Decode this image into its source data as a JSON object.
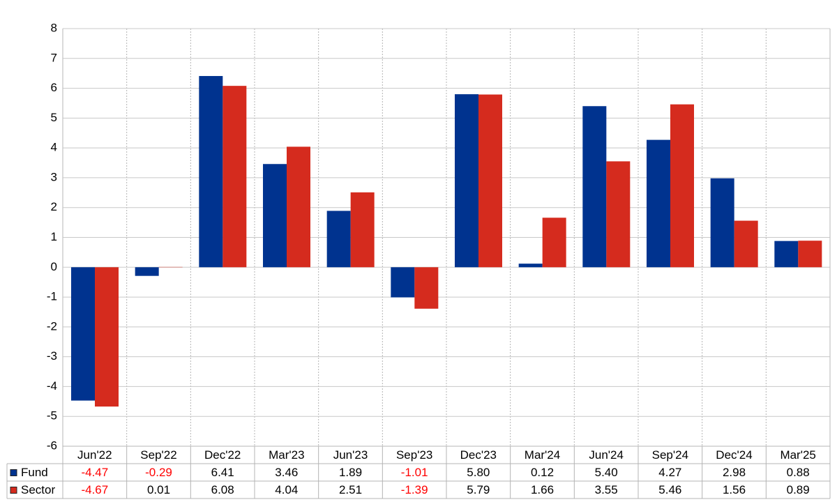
{
  "chart_data": {
    "type": "bar",
    "categories": [
      "Jun'22",
      "Sep'22",
      "Dec'22",
      "Mar'23",
      "Jun'23",
      "Sep'23",
      "Dec'23",
      "Mar'24",
      "Jun'24",
      "Sep'24",
      "Dec'24",
      "Mar'25"
    ],
    "series": [
      {
        "name": "Fund",
        "color": "#00338f",
        "values": [
          -4.47,
          -0.29,
          6.41,
          3.46,
          1.89,
          -1.01,
          5.8,
          0.12,
          5.4,
          4.27,
          2.98,
          0.88
        ],
        "value_labels": [
          "-4.47",
          "-0.29",
          "6.41",
          "3.46",
          "1.89",
          "-1.01",
          "5.80",
          "0.12",
          "5.40",
          "4.27",
          "2.98",
          "0.88"
        ]
      },
      {
        "name": "Sector",
        "color": "#d52b1e",
        "values": [
          -4.67,
          0.01,
          6.08,
          4.04,
          2.51,
          -1.39,
          5.79,
          1.66,
          3.55,
          5.46,
          1.56,
          0.89
        ],
        "value_labels": [
          "-4.67",
          "0.01",
          "6.08",
          "4.04",
          "2.51",
          "-1.39",
          "5.79",
          "1.66",
          "3.55",
          "5.46",
          "1.56",
          "0.89"
        ]
      }
    ],
    "ylim": [
      -6,
      8
    ],
    "yticks": [
      -6,
      -5,
      -4,
      -3,
      -2,
      -1,
      0,
      1,
      2,
      3,
      4,
      5,
      6,
      7,
      8
    ],
    "grid": true,
    "negative_label_color": "#ff0000"
  }
}
